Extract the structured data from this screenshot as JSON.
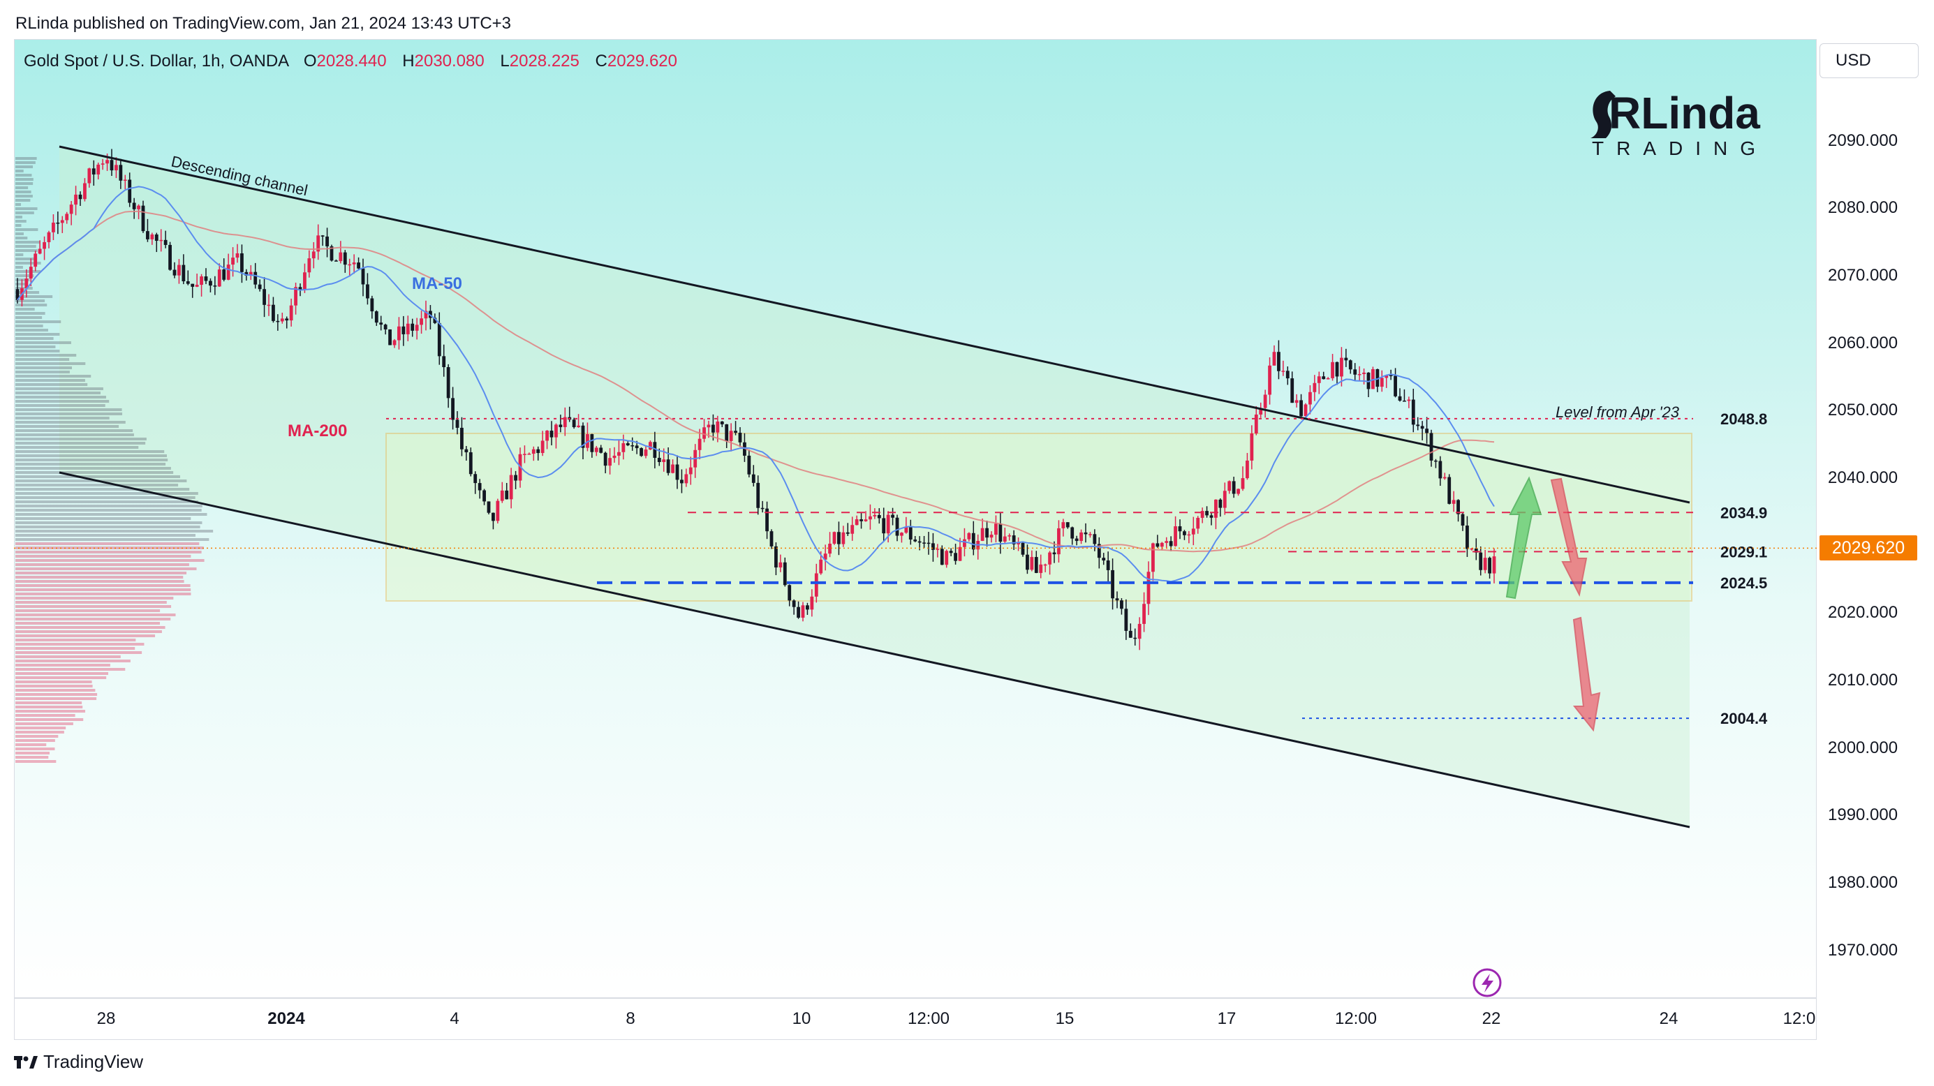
{
  "header": {
    "published": "RLinda published on TradingView.com, Jan 21, 2024 13:43 UTC+3"
  },
  "instrument": {
    "name": "Gold Spot / U.S. Dollar, 1h, OANDA",
    "o_label": "O",
    "o": "2028.440",
    "h_label": "H",
    "h": "2030.080",
    "l_label": "L",
    "l": "2028.225",
    "c_label": "C",
    "c": "2029.620"
  },
  "currency": "USD",
  "logo": {
    "text_top": "RLinda",
    "text_bottom": "TRADING"
  },
  "footer": {
    "brand": "TradingView",
    "icon": "tradingview-logo-icon"
  },
  "colors": {
    "up": "#e0224f",
    "down": "#131722",
    "ma50": "#5b8def",
    "ma200": "#e08080",
    "level_red": "#e0224f",
    "level_blue": "#1e53e5",
    "price_tag": "#f57c00"
  },
  "chart_data": {
    "type": "candlestick",
    "ylim": [
      1965,
      2100
    ],
    "y_ticks": [
      "1970.000",
      "1980.000",
      "1990.000",
      "2000.000",
      "2010.000",
      "2020.000",
      "2030.000",
      "2040.000",
      "2050.000",
      "2060.000",
      "2070.000",
      "2080.000",
      "2090.000"
    ],
    "x_ticks": [
      {
        "label": "28",
        "bold": false
      },
      {
        "label": "2024",
        "bold": true
      },
      {
        "label": "4",
        "bold": false
      },
      {
        "label": "8",
        "bold": false
      },
      {
        "label": "10",
        "bold": false
      },
      {
        "label": "12:00",
        "bold": false
      },
      {
        "label": "15",
        "bold": false
      },
      {
        "label": "17",
        "bold": false
      },
      {
        "label": "12:00",
        "bold": false
      },
      {
        "label": "22",
        "bold": false
      },
      {
        "label": "24",
        "bold": false
      },
      {
        "label": "12:0",
        "bold": false
      }
    ],
    "last_price": "2029.620",
    "last_price_value": 2029.62,
    "levels": [
      {
        "label": "2048.8",
        "value": 2048.8,
        "style": "red-dotted"
      },
      {
        "label": "2034.9",
        "value": 2034.9,
        "style": "red-dashed"
      },
      {
        "label": "2029.1",
        "value": 2029.1,
        "style": "red-dashed"
      },
      {
        "label": "2024.5",
        "value": 2024.5,
        "style": "blue-dashed"
      },
      {
        "label": "2004.4",
        "value": 2004.4,
        "style": "blue-dotted"
      }
    ],
    "annotations": {
      "channel": "Descending channel",
      "ma50": "MA-50",
      "ma200": "MA-200",
      "level_note": "Level from Apr '23"
    },
    "channel_upper": [
      [
        0.0,
        2090.3
      ],
      [
        1.0,
        2039.3
      ]
    ],
    "channel_lower": [
      [
        0.0,
        2043.5
      ],
      [
        1.0,
        1991.5
      ]
    ],
    "key_points": [
      [
        0.0,
        2068
      ],
      [
        0.04,
        2082
      ],
      [
        0.06,
        2088
      ],
      [
        0.09,
        2076
      ],
      [
        0.12,
        2068
      ],
      [
        0.15,
        2072
      ],
      [
        0.18,
        2062
      ],
      [
        0.2,
        2075
      ],
      [
        0.23,
        2072
      ],
      [
        0.25,
        2060
      ],
      [
        0.28,
        2064
      ],
      [
        0.3,
        2045
      ],
      [
        0.32,
        2033
      ],
      [
        0.34,
        2042
      ],
      [
        0.37,
        2048
      ],
      [
        0.4,
        2043
      ],
      [
        0.43,
        2045
      ],
      [
        0.45,
        2040
      ],
      [
        0.47,
        2048
      ],
      [
        0.49,
        2045
      ],
      [
        0.51,
        2030
      ],
      [
        0.53,
        2019
      ],
      [
        0.55,
        2030
      ],
      [
        0.58,
        2034
      ],
      [
        0.61,
        2031
      ],
      [
        0.63,
        2028
      ],
      [
        0.66,
        2033
      ],
      [
        0.69,
        2026
      ],
      [
        0.71,
        2033
      ],
      [
        0.73,
        2030
      ],
      [
        0.755,
        2015
      ],
      [
        0.77,
        2030
      ],
      [
        0.8,
        2034
      ],
      [
        0.83,
        2040
      ],
      [
        0.85,
        2058
      ],
      [
        0.87,
        2050
      ],
      [
        0.89,
        2057
      ],
      [
        0.91,
        2055
      ],
      [
        0.93,
        2054
      ],
      [
        0.95,
        2048
      ],
      [
        0.965,
        2040
      ],
      [
        0.985,
        2028
      ],
      [
        1.0,
        2027
      ]
    ]
  }
}
